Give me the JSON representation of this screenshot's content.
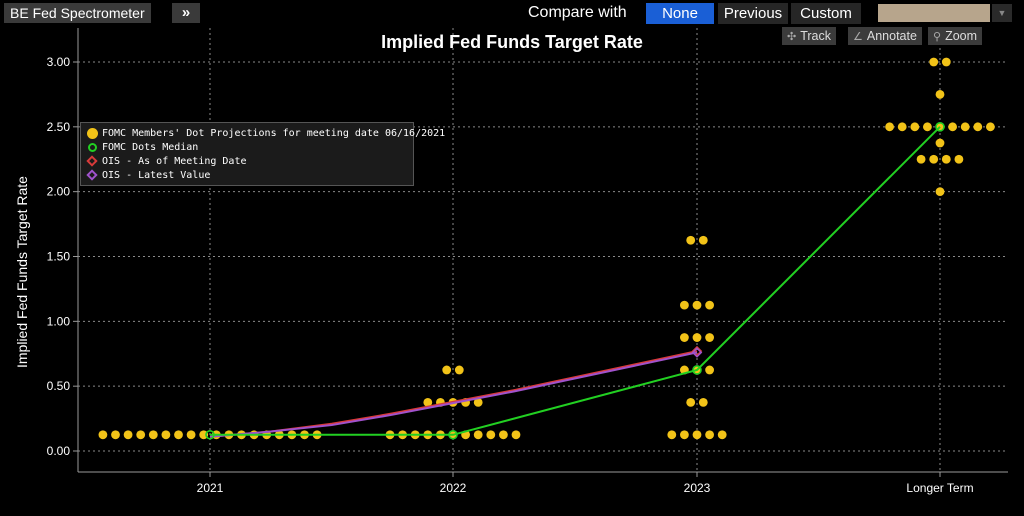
{
  "toolbar": {
    "function_title": "BE Fed Spectrometer",
    "expand_glyph": "»",
    "compare_label": "Compare with",
    "compare_options": [
      "None",
      "Previous",
      "Custom"
    ],
    "active_option": "None",
    "tools": [
      {
        "icon": "crosshair-icon",
        "glyph": "✣",
        "label": "Track"
      },
      {
        "icon": "annotate-icon",
        "glyph": "∠",
        "label": "Annotate"
      },
      {
        "icon": "zoom-icon",
        "glyph": "⚲",
        "label": "Zoom"
      }
    ]
  },
  "colors": {
    "dots": "#f2c318",
    "median": "#22d022",
    "ois_meeting": "#d83a3a",
    "ois_latest": "#a052cc",
    "accent": "#1a5fd6"
  },
  "chart_data": {
    "type": "scatter",
    "title": "Implied Fed Funds Target Rate",
    "ylabel": "Implied Fed Funds Target Rate",
    "categories": [
      "2021",
      "2022",
      "2023",
      "Longer Term"
    ],
    "ylim": [
      -0.1,
      3.2
    ],
    "yticks": [
      "0.00",
      "0.50",
      "1.00",
      "1.50",
      "2.00",
      "2.50",
      "3.00"
    ],
    "grid": true,
    "legend_position": "top-left",
    "legend": [
      "FOMC Members' Dot Projections for meeting date 06/16/2021",
      "FOMC Dots Median",
      "OIS - As of Meeting Date",
      "OIS - Latest Value"
    ],
    "dots": [
      {
        "category": "2021",
        "values": [
          {
            "rate": 0.125,
            "count": 18
          }
        ]
      },
      {
        "category": "2022",
        "values": [
          {
            "rate": 0.625,
            "count": 2
          },
          {
            "rate": 0.375,
            "count": 5
          },
          {
            "rate": 0.125,
            "count": 11
          }
        ]
      },
      {
        "category": "2023",
        "values": [
          {
            "rate": 1.625,
            "count": 2
          },
          {
            "rate": 1.125,
            "count": 3
          },
          {
            "rate": 0.875,
            "count": 3
          },
          {
            "rate": 0.625,
            "count": 3
          },
          {
            "rate": 0.375,
            "count": 2
          },
          {
            "rate": 0.125,
            "count": 5
          }
        ]
      },
      {
        "category": "Longer Term",
        "values": [
          {
            "rate": 3.0,
            "count": 2
          },
          {
            "rate": 2.75,
            "count": 1
          },
          {
            "rate": 2.5,
            "count": 9
          },
          {
            "rate": 2.375,
            "count": 1
          },
          {
            "rate": 2.25,
            "count": 4
          },
          {
            "rate": 2.0,
            "count": 1
          }
        ]
      }
    ],
    "series": [
      {
        "name": "FOMC Dots Median",
        "x": [
          "2021",
          "2022",
          "2023",
          "Longer Term"
        ],
        "values": [
          0.125,
          0.125,
          0.625,
          2.5
        ]
      },
      {
        "name": "OIS - As of Meeting Date",
        "x": [
          2021.0,
          2021.25,
          2021.5,
          2021.75,
          2022.0,
          2022.25,
          2022.5,
          2022.75,
          2023.0
        ],
        "values": [
          0.11,
          0.15,
          0.21,
          0.29,
          0.38,
          0.47,
          0.57,
          0.67,
          0.77
        ]
      },
      {
        "name": "OIS - Latest Value",
        "x": [
          2021.0,
          2021.25,
          2021.5,
          2021.75,
          2022.0,
          2022.25,
          2022.5,
          2022.75,
          2023.0
        ],
        "values": [
          0.11,
          0.15,
          0.2,
          0.28,
          0.37,
          0.46,
          0.56,
          0.66,
          0.76
        ]
      }
    ]
  }
}
